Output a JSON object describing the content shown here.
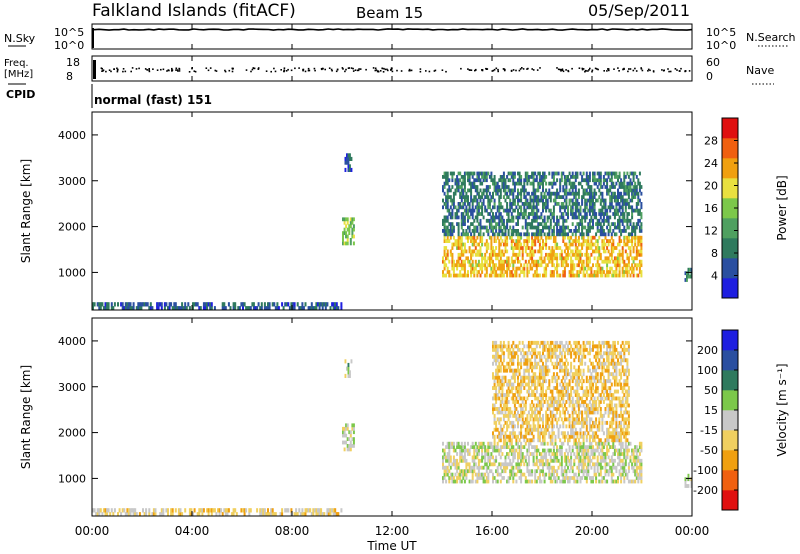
{
  "header": {
    "station": "Falkland Islands (fitACF)",
    "beam": "Beam 15",
    "date": "05/Sep/2011"
  },
  "noise_panel": {
    "left_label": "N.Sky",
    "left_ticks": [
      "10^5",
      "10^0"
    ],
    "right_ticks": [
      "10^5",
      "10^0"
    ],
    "right_label": "N.Search"
  },
  "freq_panel": {
    "left_label_1": "Freq.",
    "left_label_2": "[MHz]",
    "left_ticks": [
      "18",
      "8"
    ],
    "right_ticks": [
      "60",
      "0"
    ],
    "right_label": "Nave"
  },
  "cpid": {
    "label": "CPID",
    "text": "normal (fast) 151"
  },
  "x_axis": {
    "label": "Time UT",
    "ticks": [
      "00:00",
      "04:00",
      "08:00",
      "12:00",
      "16:00",
      "20:00",
      "00:00"
    ]
  },
  "colors": {
    "power_scale": [
      "#1f1fe0",
      "#2a4fa0",
      "#2f7a5e",
      "#4fa060",
      "#7cc84a",
      "#e8e040",
      "#f0a010",
      "#f06010",
      "#e01010"
    ],
    "velocity_scale": [
      "#e01010",
      "#f06010",
      "#f0a010",
      "#f0d060",
      "#c8c8c8",
      "#7cc84a",
      "#2f7a5e",
      "#2a4fa0",
      "#1f1fe0"
    ]
  },
  "chart_data": [
    {
      "type": "heatmap",
      "panel": "power",
      "ylabel": "Slant Range [km]",
      "xlabel": "Time UT",
      "x_range_hours": [
        0,
        24
      ],
      "ylim": [
        180,
        4500
      ],
      "y_ticks": [
        "1000",
        "2000",
        "3000",
        "4000"
      ],
      "colorbar": {
        "label": "Power [dB]",
        "ticks": [
          "4",
          "8",
          "12",
          "16",
          "20",
          "24",
          "28"
        ],
        "range": [
          0,
          30
        ]
      },
      "regions": [
        {
          "t": [
            0,
            10
          ],
          "range": [
            180,
            350
          ],
          "value": 6
        },
        {
          "t": [
            10,
            10.5
          ],
          "range": [
            1600,
            2200
          ],
          "value": 14
        },
        {
          "t": [
            10.1,
            10.4
          ],
          "range": [
            3200,
            3600
          ],
          "value": 6
        },
        {
          "t": [
            14,
            22
          ],
          "range": [
            900,
            1800
          ],
          "value": 20
        },
        {
          "t": [
            14,
            22
          ],
          "range": [
            1800,
            3200
          ],
          "value": 8
        },
        {
          "t": [
            23.7,
            24
          ],
          "range": [
            800,
            1100
          ],
          "value": 8
        }
      ]
    },
    {
      "type": "heatmap",
      "panel": "velocity",
      "ylabel": "Slant Range [km]",
      "xlabel": "Time UT",
      "x_range_hours": [
        0,
        24
      ],
      "ylim": [
        180,
        4500
      ],
      "y_ticks": [
        "1000",
        "2000",
        "3000",
        "4000"
      ],
      "colorbar": {
        "label": "Velocity [m s⁻¹]",
        "ticks": [
          "-200",
          "-100",
          "-50",
          "-15",
          "15",
          "50",
          "100",
          "200"
        ],
        "range": [
          -250,
          250
        ]
      },
      "regions": [
        {
          "t": [
            0,
            10
          ],
          "range": [
            180,
            350
          ],
          "value": -40
        },
        {
          "t": [
            10,
            10.5
          ],
          "range": [
            1600,
            2200
          ],
          "value": 0
        },
        {
          "t": [
            10.1,
            10.4
          ],
          "range": [
            3200,
            3600
          ],
          "value": 30
        },
        {
          "t": [
            14,
            22
          ],
          "range": [
            900,
            1800
          ],
          "value": 0
        },
        {
          "t": [
            16,
            21.5
          ],
          "range": [
            1800,
            4000
          ],
          "value": -60
        },
        {
          "t": [
            23.7,
            24
          ],
          "range": [
            800,
            1100
          ],
          "value": 0
        }
      ]
    }
  ]
}
